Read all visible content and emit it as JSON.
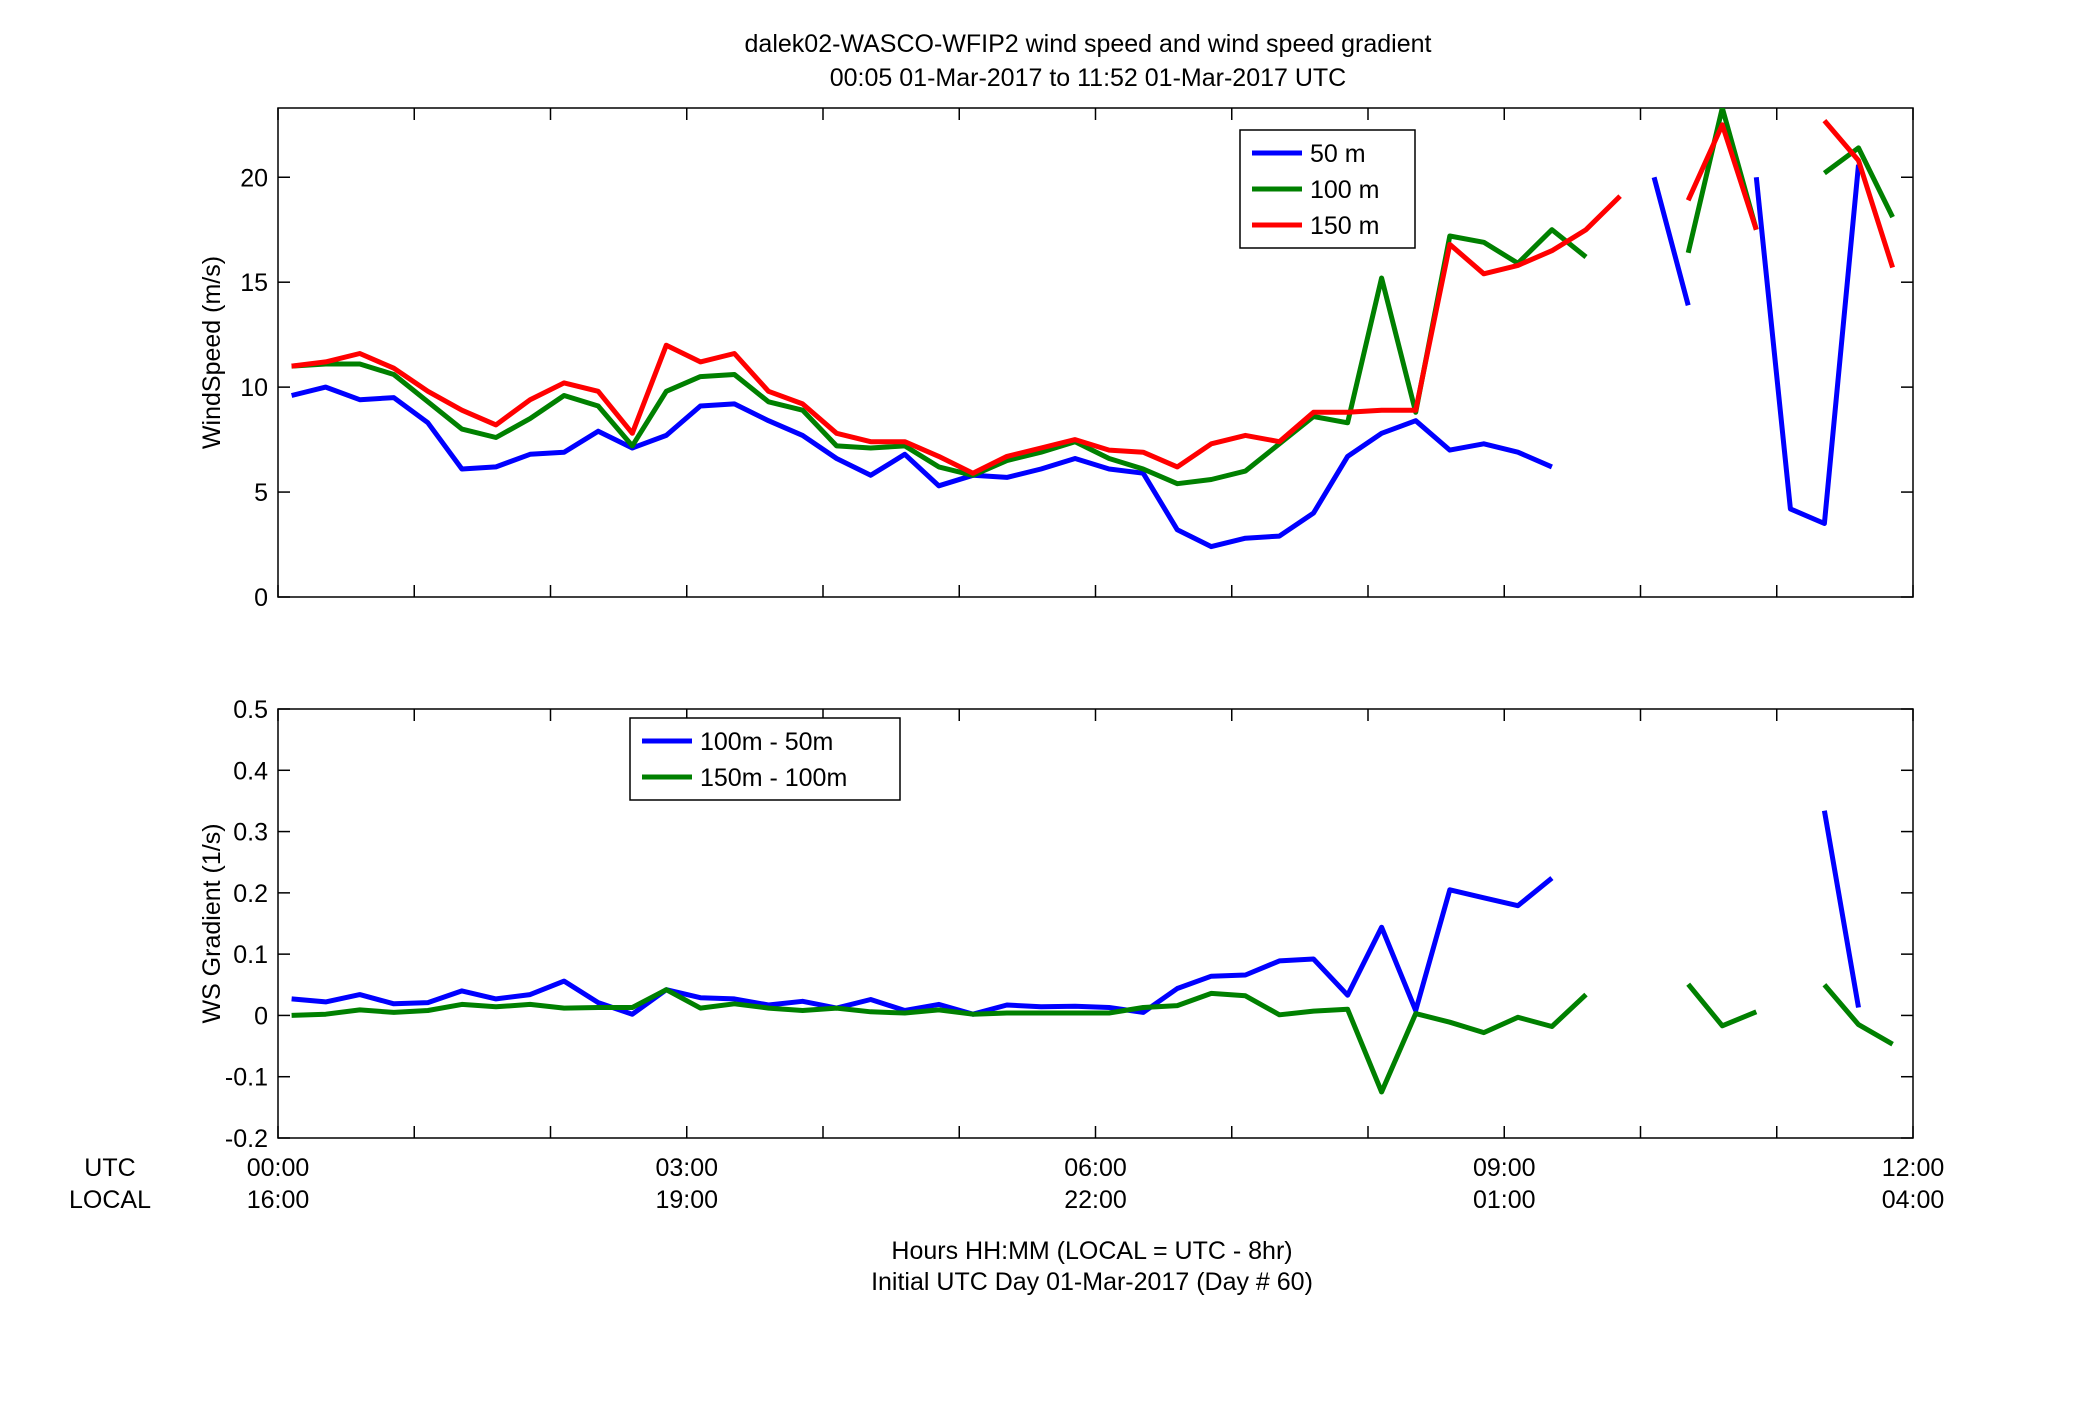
{
  "title_line1": "dalek02-WASCO-WFIP2  wind speed and wind speed gradient",
  "title_line2": "00:05 01-Mar-2017 to 11:52 01-Mar-2017  UTC",
  "xlabel_line1": "Hours HH:MM  (LOCAL = UTC - 8hr)",
  "xlabel_line2": "Initial UTC Day 01-Mar-2017 (Day # 60)",
  "row_label_utc": "UTC",
  "row_label_local": "LOCAL",
  "x_ticks_utc": [
    "00:00",
    "03:00",
    "06:00",
    "09:00",
    "12:00"
  ],
  "x_ticks_local": [
    "16:00",
    "19:00",
    "22:00",
    "01:00",
    "04:00"
  ],
  "chart_data": [
    {
      "type": "line",
      "ylabel": "WindSpeed (m/s)",
      "xlim": [
        0,
        12
      ],
      "ylim": [
        0,
        23.3
      ],
      "yticks": [
        0,
        5,
        10,
        15,
        20
      ],
      "legend_position": "top-right",
      "series": [
        {
          "name": "50 m",
          "color": "#0000ff",
          "points": [
            [
              0.1,
              9.6
            ],
            [
              0.35,
              10.0
            ],
            [
              0.6,
              9.4
            ],
            [
              0.85,
              9.5
            ],
            [
              1.1,
              8.3
            ],
            [
              1.35,
              6.1
            ],
            [
              1.6,
              6.2
            ],
            [
              1.85,
              6.8
            ],
            [
              2.1,
              6.9
            ],
            [
              2.35,
              7.9
            ],
            [
              2.6,
              7.1
            ],
            [
              2.85,
              7.7
            ],
            [
              3.1,
              9.1
            ],
            [
              3.35,
              9.2
            ],
            [
              3.6,
              8.4
            ],
            [
              3.85,
              7.7
            ],
            [
              4.1,
              6.6
            ],
            [
              4.35,
              5.8
            ],
            [
              4.6,
              6.8
            ],
            [
              4.85,
              5.3
            ],
            [
              5.1,
              5.8
            ],
            [
              5.35,
              5.7
            ],
            [
              5.6,
              6.1
            ],
            [
              5.85,
              6.6
            ],
            [
              6.1,
              6.1
            ],
            [
              6.35,
              5.9
            ],
            [
              6.6,
              3.2
            ],
            [
              6.85,
              2.4
            ],
            [
              7.1,
              2.8
            ],
            [
              7.35,
              2.9
            ],
            [
              7.6,
              4.0
            ],
            [
              7.85,
              6.7
            ],
            [
              8.1,
              7.8
            ],
            [
              8.35,
              8.4
            ],
            [
              8.6,
              7.0
            ],
            [
              8.85,
              7.3
            ],
            [
              9.1,
              6.9
            ],
            [
              9.35,
              6.2
            ],
            null,
            [
              10.1,
              20.0
            ],
            [
              10.35,
              13.9
            ],
            null,
            [
              10.85,
              20.0
            ],
            [
              11.1,
              4.2
            ],
            [
              11.35,
              3.5
            ],
            [
              11.6,
              20.6
            ]
          ]
        },
        {
          "name": "100 m",
          "color": "#008000",
          "points": [
            [
              0.1,
              11.0
            ],
            [
              0.35,
              11.1
            ],
            [
              0.6,
              11.1
            ],
            [
              0.85,
              10.6
            ],
            [
              1.1,
              9.3
            ],
            [
              1.35,
              8.0
            ],
            [
              1.6,
              7.6
            ],
            [
              1.85,
              8.5
            ],
            [
              2.1,
              9.6
            ],
            [
              2.35,
              9.1
            ],
            [
              2.6,
              7.2
            ],
            [
              2.85,
              9.8
            ],
            [
              3.1,
              10.5
            ],
            [
              3.35,
              10.6
            ],
            [
              3.6,
              9.3
            ],
            [
              3.85,
              8.9
            ],
            [
              4.1,
              7.2
            ],
            [
              4.35,
              7.1
            ],
            [
              4.6,
              7.2
            ],
            [
              4.85,
              6.2
            ],
            [
              5.1,
              5.8
            ],
            [
              5.35,
              6.5
            ],
            [
              5.6,
              6.9
            ],
            [
              5.85,
              7.4
            ],
            [
              6.1,
              6.6
            ],
            [
              6.35,
              6.1
            ],
            [
              6.6,
              5.4
            ],
            [
              6.85,
              5.6
            ],
            [
              7.1,
              6.0
            ],
            [
              7.35,
              7.3
            ],
            [
              7.6,
              8.6
            ],
            [
              7.85,
              8.3
            ],
            [
              8.1,
              15.2
            ],
            [
              8.35,
              8.8
            ],
            [
              8.6,
              17.2
            ],
            [
              8.85,
              16.9
            ],
            [
              9.1,
              15.9
            ],
            [
              9.35,
              17.5
            ],
            [
              9.6,
              16.2
            ],
            null,
            [
              10.35,
              16.4
            ],
            [
              10.6,
              23.3
            ],
            [
              10.85,
              17.5
            ],
            null,
            [
              11.35,
              20.2
            ],
            [
              11.6,
              21.4
            ],
            [
              11.85,
              18.1
            ]
          ]
        },
        {
          "name": "150 m",
          "color": "#ff0000",
          "points": [
            [
              0.1,
              11.0
            ],
            [
              0.35,
              11.2
            ],
            [
              0.6,
              11.6
            ],
            [
              0.85,
              10.9
            ],
            [
              1.1,
              9.8
            ],
            [
              1.35,
              8.9
            ],
            [
              1.6,
              8.2
            ],
            [
              1.85,
              9.4
            ],
            [
              2.1,
              10.2
            ],
            [
              2.35,
              9.8
            ],
            [
              2.6,
              7.8
            ],
            [
              2.85,
              12.0
            ],
            [
              3.1,
              11.2
            ],
            [
              3.35,
              11.6
            ],
            [
              3.6,
              9.8
            ],
            [
              3.85,
              9.2
            ],
            [
              4.1,
              7.8
            ],
            [
              4.35,
              7.4
            ],
            [
              4.6,
              7.4
            ],
            [
              4.85,
              6.7
            ],
            [
              5.1,
              5.9
            ],
            [
              5.35,
              6.7
            ],
            [
              5.6,
              7.1
            ],
            [
              5.85,
              7.5
            ],
            [
              6.1,
              7.0
            ],
            [
              6.35,
              6.9
            ],
            [
              6.6,
              6.2
            ],
            [
              6.85,
              7.3
            ],
            [
              7.1,
              7.7
            ],
            [
              7.35,
              7.4
            ],
            [
              7.6,
              8.8
            ],
            [
              7.85,
              8.8
            ],
            [
              8.1,
              8.9
            ],
            [
              8.35,
              8.9
            ],
            [
              8.6,
              16.8
            ],
            [
              8.85,
              15.4
            ],
            [
              9.1,
              15.8
            ],
            [
              9.35,
              16.5
            ],
            [
              9.6,
              17.5
            ],
            [
              9.85,
              19.1
            ],
            null,
            [
              10.35,
              18.9
            ],
            [
              10.6,
              22.5
            ],
            [
              10.85,
              17.5
            ],
            null,
            [
              11.35,
              22.7
            ],
            [
              11.6,
              20.8
            ],
            [
              11.85,
              15.7
            ]
          ]
        }
      ]
    },
    {
      "type": "line",
      "ylabel": "WS Gradient (1/s)",
      "xlim": [
        0,
        12
      ],
      "ylim": [
        -0.2,
        0.5
      ],
      "yticks": [
        -0.2,
        -0.1,
        0,
        0.1,
        0.2,
        0.3,
        0.4,
        0.5
      ],
      "ytick_labels": [
        "-0.2",
        "-0.1",
        "0",
        "0.1",
        "0.2",
        "0.3",
        "0.4",
        "0.5"
      ],
      "legend_position": "top-left",
      "series": [
        {
          "name": "100m - 50m",
          "color": "#0000ff",
          "points": [
            [
              0.1,
              0.027
            ],
            [
              0.35,
              0.022
            ],
            [
              0.6,
              0.034
            ],
            [
              0.85,
              0.019
            ],
            [
              1.1,
              0.021
            ],
            [
              1.35,
              0.04
            ],
            [
              1.6,
              0.027
            ],
            [
              1.85,
              0.034
            ],
            [
              2.1,
              0.056
            ],
            [
              2.35,
              0.021
            ],
            [
              2.6,
              0.002
            ],
            [
              2.85,
              0.042
            ],
            [
              3.1,
              0.029
            ],
            [
              3.35,
              0.027
            ],
            [
              3.6,
              0.017
            ],
            [
              3.85,
              0.023
            ],
            [
              4.1,
              0.012
            ],
            [
              4.35,
              0.026
            ],
            [
              4.6,
              0.008
            ],
            [
              4.85,
              0.018
            ],
            [
              5.1,
              0.002
            ],
            [
              5.35,
              0.017
            ],
            [
              5.6,
              0.014
            ],
            [
              5.85,
              0.015
            ],
            [
              6.1,
              0.013
            ],
            [
              6.35,
              0.005
            ],
            [
              6.6,
              0.044
            ],
            [
              6.85,
              0.064
            ],
            [
              7.1,
              0.066
            ],
            [
              7.35,
              0.089
            ],
            [
              7.6,
              0.092
            ],
            [
              7.85,
              0.033
            ],
            [
              8.1,
              0.144
            ],
            [
              8.35,
              0.008
            ],
            [
              8.6,
              0.205
            ],
            [
              8.85,
              0.192
            ],
            [
              9.1,
              0.179
            ],
            [
              9.35,
              0.224
            ],
            null,
            [
              11.35,
              0.334
            ],
            [
              11.6,
              0.013
            ]
          ]
        },
        {
          "name": "150m - 100m",
          "color": "#008000",
          "points": [
            [
              0.1,
              0.0
            ],
            [
              0.35,
              0.002
            ],
            [
              0.6,
              0.009
            ],
            [
              0.85,
              0.005
            ],
            [
              1.1,
              0.008
            ],
            [
              1.35,
              0.018
            ],
            [
              1.6,
              0.014
            ],
            [
              1.85,
              0.018
            ],
            [
              2.1,
              0.012
            ],
            [
              2.35,
              0.013
            ],
            [
              2.6,
              0.013
            ],
            [
              2.85,
              0.042
            ],
            [
              3.1,
              0.012
            ],
            [
              3.35,
              0.019
            ],
            [
              3.6,
              0.012
            ],
            [
              3.85,
              0.008
            ],
            [
              4.1,
              0.012
            ],
            [
              4.35,
              0.006
            ],
            [
              4.6,
              0.004
            ],
            [
              4.85,
              0.009
            ],
            [
              5.1,
              0.002
            ],
            [
              5.35,
              0.004
            ],
            [
              5.6,
              0.004
            ],
            [
              5.85,
              0.004
            ],
            [
              6.1,
              0.004
            ],
            [
              6.35,
              0.013
            ],
            [
              6.6,
              0.016
            ],
            [
              6.85,
              0.036
            ],
            [
              7.1,
              0.032
            ],
            [
              7.35,
              0.001
            ],
            [
              7.6,
              0.007
            ],
            [
              7.85,
              0.01
            ],
            [
              8.1,
              -0.125
            ],
            [
              8.35,
              0.003
            ],
            [
              8.6,
              -0.011
            ],
            [
              8.85,
              -0.028
            ],
            [
              9.1,
              -0.003
            ],
            [
              9.35,
              -0.018
            ],
            [
              9.6,
              0.034
            ],
            null,
            [
              10.35,
              0.051
            ],
            [
              10.6,
              -0.017
            ],
            [
              10.85,
              0.006
            ],
            null,
            [
              11.35,
              0.05
            ],
            [
              11.6,
              -0.015
            ],
            [
              11.85,
              -0.047
            ]
          ]
        }
      ]
    }
  ]
}
